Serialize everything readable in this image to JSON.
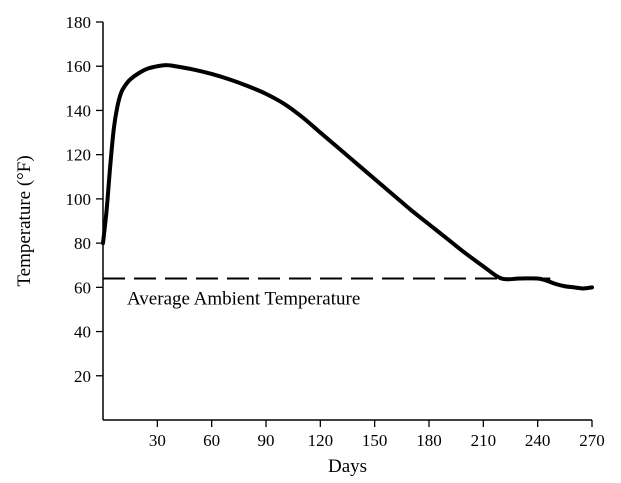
{
  "chart_data": {
    "type": "line",
    "title": "",
    "xlabel": "Days",
    "ylabel": "Temperature (°F)",
    "xlim": [
      0,
      270
    ],
    "ylim": [
      0,
      180
    ],
    "x_ticks": [
      30,
      60,
      90,
      120,
      150,
      180,
      210,
      240,
      270
    ],
    "y_ticks": [
      20,
      40,
      60,
      80,
      100,
      120,
      140,
      160,
      180
    ],
    "grid": false,
    "series": [
      {
        "x": [
          0,
          2,
          4,
          6,
          8,
          10,
          12,
          15,
          20,
          25,
          30,
          35,
          40,
          50,
          60,
          70,
          80,
          90,
          100,
          110,
          120,
          130,
          140,
          150,
          160,
          170,
          180,
          190,
          200,
          210,
          220,
          230,
          240,
          245,
          250,
          255,
          260,
          265,
          270
        ],
        "y": [
          80,
          95,
          115,
          132,
          142,
          148,
          151,
          154,
          157,
          159,
          160,
          160.5,
          160,
          158.5,
          156.5,
          154,
          151,
          147.5,
          143,
          137,
          130,
          123,
          116,
          109,
          102,
          95,
          88.5,
          82,
          75.5,
          69.5,
          64,
          64,
          64,
          63,
          61.5,
          60.5,
          60,
          59.5,
          60
        ]
      }
    ],
    "reference_lines": [
      {
        "orientation": "horizontal",
        "y": 64,
        "style": "dashed",
        "label": "Average Ambient Temperature"
      }
    ],
    "colors": {
      "line": "#000000",
      "axis": "#000000"
    }
  }
}
